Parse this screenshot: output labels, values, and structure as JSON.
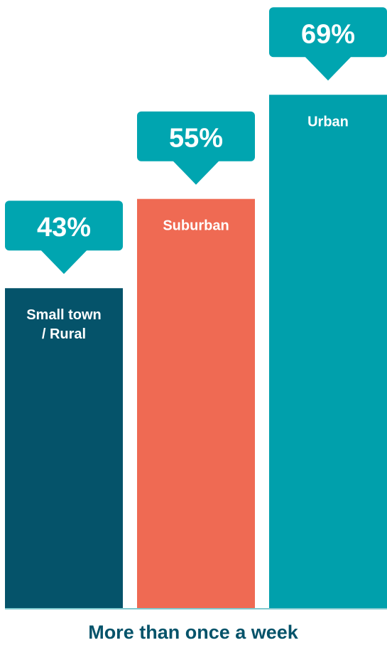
{
  "chart_data": {
    "type": "bar",
    "categories": [
      "Small town / Rural",
      "Suburban",
      "Urban"
    ],
    "values": [
      43,
      55,
      69
    ],
    "value_labels": [
      "43%",
      "55%",
      "69%"
    ],
    "colors": [
      "#05536a",
      "#ef6a53",
      "#00a0ac"
    ],
    "callout_color": "#00a5b0",
    "x_label": "More than once a week"
  }
}
